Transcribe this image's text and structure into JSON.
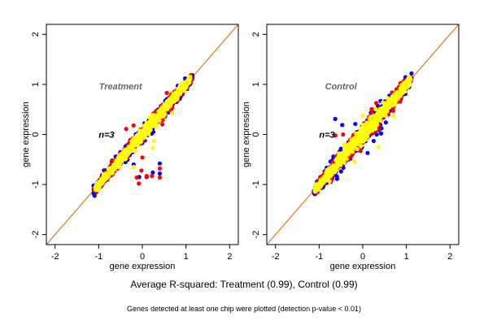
{
  "caption": "Average R-squared: Treatment (0.99), Control (0.99)",
  "footnote": "Genes detected at least one chip were plotted (detection p-value < 0.01)",
  "chart_data": [
    {
      "type": "scatter",
      "title": "Treatment",
      "annotation": "n=3",
      "xlabel": "gene expression",
      "ylabel": "gene expression",
      "xlim": [
        -2.2,
        2.2
      ],
      "ylim": [
        -2.2,
        2.2
      ],
      "xticks": [
        "-2",
        "-1",
        "0",
        "1",
        "2"
      ],
      "yticks": [
        "-2",
        "-1",
        "0",
        "1",
        "2"
      ],
      "reference_line": {
        "slope": 1,
        "intercept": 0,
        "color": "#e07a10"
      },
      "grid": false,
      "series": [
        {
          "color": "#0000ff",
          "cloud": {
            "x_range": [
              -1.12,
              1.15
            ],
            "spread": 0.07
          },
          "outliers": [
            [
              0.4,
              -0.58
            ],
            [
              0.4,
              -0.78
            ],
            [
              0.24,
              -0.76
            ],
            [
              -0.07,
              -0.85
            ],
            [
              0.1,
              -0.85
            ],
            [
              -0.2,
              -0.6
            ],
            [
              -1.05,
              -1.15
            ]
          ]
        },
        {
          "color": "#ff0000",
          "cloud": {
            "x_range": [
              -1.1,
              1.12
            ],
            "spread": 0.065
          },
          "outliers": [
            [
              0.56,
              0.83
            ],
            [
              -0.37,
              0.11
            ],
            [
              -0.2,
              0.18
            ],
            [
              0,
              -0.46
            ],
            [
              -0.02,
              -0.72
            ],
            [
              -0.08,
              -0.98
            ],
            [
              -0.13,
              -0.86
            ],
            [
              0.1,
              -0.83
            ],
            [
              0.22,
              -0.83
            ],
            [
              0.4,
              -0.86
            ],
            [
              0.4,
              -0.68
            ],
            [
              0.33,
              0.22
            ],
            [
              0.46,
              0.2
            ]
          ]
        },
        {
          "color": "#ffff00",
          "cloud": {
            "x_range": [
              -1.08,
              1.1
            ],
            "spread": 0.055
          },
          "outliers": [
            [
              0.68,
              0.43
            ],
            [
              0.26,
              -0.13
            ],
            [
              0.24,
              -0.27
            ],
            [
              -0.2,
              -0.65
            ]
          ]
        }
      ]
    },
    {
      "type": "scatter",
      "title": "Control",
      "annotation": "n=3",
      "xlabel": "gene expression",
      "ylabel": "gene expression",
      "xlim": [
        -2.2,
        2.2
      ],
      "ylim": [
        -2.2,
        2.2
      ],
      "xticks": [
        "-2",
        "-1",
        "0",
        "1",
        "2"
      ],
      "yticks": [
        "-2",
        "-1",
        "0",
        "1",
        "2"
      ],
      "reference_line": {
        "slope": 1,
        "intercept": 0,
        "color": "#e07a10"
      },
      "grid": false,
      "series": [
        {
          "color": "#0000ff",
          "cloud": {
            "x_range": [
              -1.12,
              1.12
            ],
            "spread": 0.095
          },
          "outliers": [
            [
              -0.63,
              0.31
            ],
            [
              -0.47,
              0.19
            ],
            [
              0.32,
              0.0
            ],
            [
              0.25,
              -0.13
            ],
            [
              0.11,
              -0.37
            ],
            [
              0.53,
              0.24
            ],
            [
              0.42,
              0.02
            ],
            [
              -0.17,
              0.21
            ]
          ]
        },
        {
          "color": "#ff0000",
          "cloud": {
            "x_range": [
              -1.1,
              1.1
            ],
            "spread": 0.085
          },
          "outliers": [
            [
              -0.63,
              -0.02
            ],
            [
              0.72,
              0.57
            ],
            [
              0.36,
              0.1
            ],
            [
              -0.05,
              -0.33
            ],
            [
              -0.45,
              0.0
            ]
          ]
        },
        {
          "color": "#ffff00",
          "cloud": {
            "x_range": [
              -1.1,
              1.1
            ],
            "spread": 0.07
          },
          "outliers": [
            [
              0.36,
              -0.25
            ],
            [
              0.7,
              0.37
            ],
            [
              0,
              0.38
            ],
            [
              -0.19,
              -0.54
            ]
          ]
        }
      ]
    }
  ]
}
